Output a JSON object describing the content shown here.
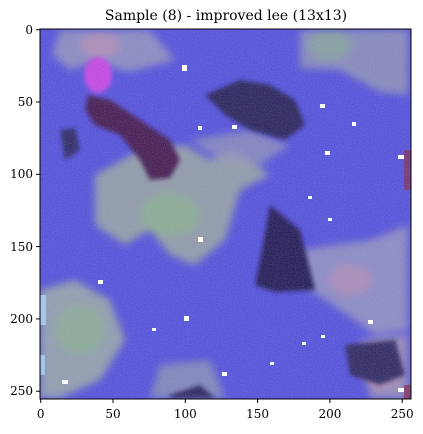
{
  "figure": {
    "title": "Sample (8) - improved lee (13x13)",
    "x_ticks": [
      "0",
      "50",
      "100",
      "150",
      "200",
      "250"
    ],
    "y_ticks": [
      "0",
      "50",
      "100",
      "150",
      "200",
      "250"
    ]
  },
  "image": {
    "description_name": "filtered-sample-image",
    "dominant_color": "#4a47d8",
    "dark_region_color": "#1a1048",
    "light_region_color": "#9fa0c0",
    "accent_magenta": "#c23ee0",
    "accent_green": "#7fbf6f",
    "accent_pink": "#d98aa0",
    "speck_color": "#ffffff"
  }
}
